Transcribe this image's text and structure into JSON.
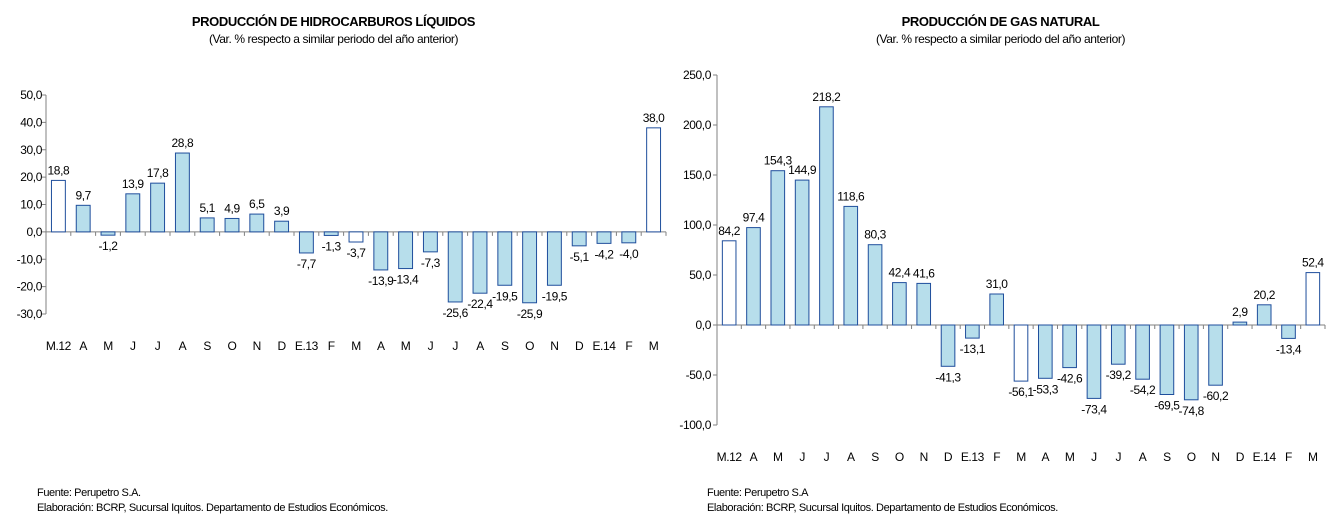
{
  "charts": [
    {
      "type": "bar",
      "title": "PRODUCCIÓN DE HIDROCARBUROS LÍQUIDOS",
      "subtitle": "(Var. % respecto a similar periodo del año anterior)",
      "categories": [
        "M.12",
        "A",
        "M",
        "J",
        "J",
        "A",
        "S",
        "O",
        "N",
        "D",
        "E.13",
        "F",
        "M",
        "A",
        "M",
        "J",
        "J",
        "A",
        "S",
        "O",
        "N",
        "D",
        "E.14",
        "F",
        "M"
      ],
      "values": [
        18.8,
        9.7,
        -1.2,
        13.9,
        17.8,
        28.8,
        5.1,
        4.9,
        6.5,
        3.9,
        -7.7,
        -1.3,
        -3.7,
        -13.9,
        -13.4,
        -7.3,
        -25.6,
        -22.4,
        -19.5,
        -25.9,
        -19.5,
        -5.1,
        -4.2,
        -4.0,
        38.0
      ],
      "value_labels": [
        "18,8",
        "9,7",
        "-1,2",
        "13,9",
        "17,8",
        "28,8",
        "5,1",
        "4,9",
        "6,5",
        "3,9",
        "-7,7",
        "-1,3",
        "-3,7",
        "-13,9",
        "-13,4",
        "-7,3",
        "-25,6",
        "-22,4",
        "-19,5",
        "-25,9",
        "-19,5",
        "-5,1",
        "-4,2",
        "-4,0",
        "38,0"
      ],
      "hollow_indices": [
        0,
        12,
        24
      ],
      "ylim": [
        -30,
        50
      ],
      "yticks": [
        -30,
        -20,
        -10,
        0,
        10,
        20,
        30,
        40,
        50
      ],
      "ytick_labels": [
        "-30,0",
        "-20,0",
        "-10,0",
        "0,0",
        "10,0",
        "20,0",
        "30,0",
        "40,0",
        "50,0"
      ],
      "source": "Fuente: Perupetro S.A.",
      "credit": "Elaboración: BCRP, Sucursal Iquitos. Departamento de Estudios Económicos."
    },
    {
      "type": "bar",
      "title": "PRODUCCIÓN DE GAS NATURAL",
      "subtitle": "(Var. % respecto a similar periodo del año anterior)",
      "categories": [
        "M.12",
        "A",
        "M",
        "J",
        "J",
        "A",
        "S",
        "O",
        "N",
        "D",
        "E.13",
        "F",
        "M",
        "A",
        "M",
        "J",
        "J",
        "A",
        "S",
        "O",
        "N",
        "D",
        "E.14",
        "F",
        "M"
      ],
      "values": [
        84.2,
        97.4,
        154.3,
        144.9,
        218.2,
        118.6,
        80.3,
        42.4,
        41.6,
        -41.3,
        -13.1,
        31.0,
        -56.1,
        -53.3,
        -42.6,
        -73.4,
        -39.2,
        -54.2,
        -69.5,
        -74.8,
        -60.2,
        2.9,
        20.2,
        -13.4,
        52.4
      ],
      "value_labels": [
        "84,2",
        "97,4",
        "154,3",
        "144,9",
        "218,2",
        "118,6",
        "80,3",
        "42,4",
        "41,6",
        "-41,3",
        "-13,1",
        "31,0",
        "-56,1",
        "-53,3",
        "-42,6",
        "-73,4",
        "-39,2",
        "-54,2",
        "-69,5",
        "-74,8",
        "-60,2",
        "2,9",
        "20,2",
        "-13,4",
        "52,4"
      ],
      "hollow_indices": [
        0,
        12,
        24
      ],
      "ylim": [
        -100,
        250
      ],
      "yticks": [
        -100,
        -50,
        0,
        50,
        100,
        150,
        200,
        250
      ],
      "ytick_labels": [
        "-100,0",
        "-50,0",
        "0,0",
        "50,0",
        "100,0",
        "150,0",
        "200,0",
        "250,0"
      ],
      "source": "Fuente: Perupetro S.A",
      "credit": "Elaboración: BCRP, Sucursal Iquitos. Departamento de Estudios Económicos."
    }
  ],
  "colors": {
    "fill": "#b7deeb",
    "stroke": "#1f4e9c",
    "axis": "#808080"
  }
}
